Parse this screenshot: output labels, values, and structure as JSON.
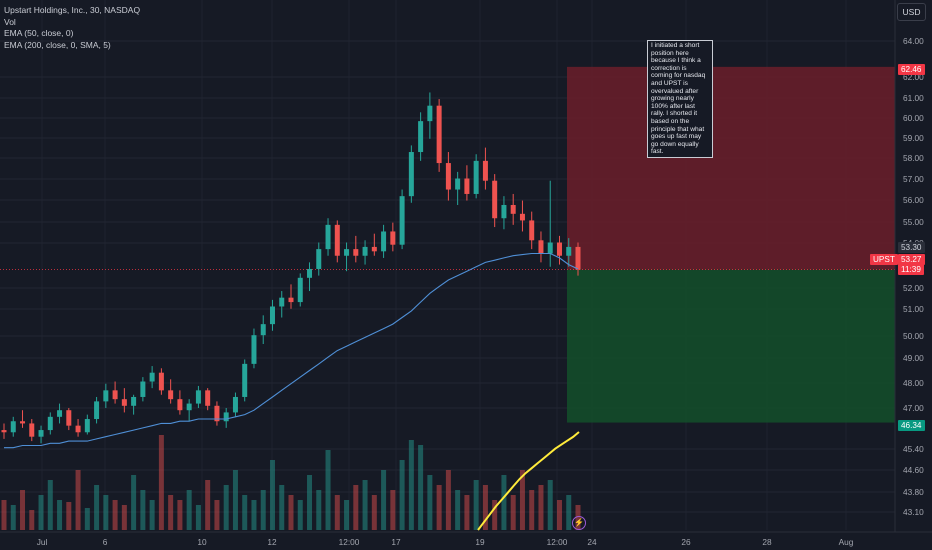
{
  "legend": {
    "title": "Upstart Holdings, Inc., 30, NASDAQ",
    "vol": "Vol",
    "ema50": "EMA (50, close, 0)",
    "ema200": "EMA (200, close, 0, SMA, 5)"
  },
  "currency": "USD",
  "note": "I initiated a short position here because I think a correction is coming for nasdaq and UPST is overvalued after growing nearly 100% after last rally. I shorted it based on the principle that what goes up fast may go down equally fast.",
  "colors": {
    "background": "#161a25",
    "up": "#26a69a",
    "down": "#ef5350",
    "ema50": "#4f8fd6",
    "ema200": "#ffeb3b",
    "stop_zone": "#6b1f2a",
    "target_zone": "#134d2a",
    "stop_badge": "#f23645",
    "target_badge": "#089981",
    "price_badge": "#f23645"
  },
  "badges": {
    "stop": "62.46",
    "ema": "53.30",
    "symbol": "UPST",
    "last": "53.27",
    "countdown": "11:39",
    "target": "46.34"
  },
  "chart_data": {
    "type": "candlestick",
    "symbol": "UPST",
    "interval": "30",
    "y_axis_ticks": [
      "64.00",
      "62.00",
      "61.00",
      "60.00",
      "59.00",
      "58.00",
      "57.00",
      "56.00",
      "55.00",
      "54.00",
      "52.00",
      "51.00",
      "50.00",
      "49.00",
      "48.00",
      "47.00",
      "45.40",
      "44.60",
      "43.80",
      "43.10"
    ],
    "x_axis_ticks": [
      "Jul",
      "6",
      "10",
      "12",
      "12:00",
      "17",
      "19",
      "12:00",
      "24",
      "26",
      "28",
      "Aug"
    ],
    "price_range": [
      46.0,
      64.5
    ],
    "position": {
      "side": "short",
      "entry": 53.27,
      "stop": 62.46,
      "target": 46.34
    },
    "last_price": 53.27,
    "ema50_last": 53.3,
    "candles": [
      [
        46.0,
        46.3,
        45.6,
        45.9
      ],
      [
        45.9,
        46.6,
        45.7,
        46.4
      ],
      [
        46.4,
        46.9,
        46.1,
        46.3
      ],
      [
        46.3,
        46.5,
        45.5,
        45.7
      ],
      [
        45.7,
        46.2,
        45.4,
        46.0
      ],
      [
        46.0,
        46.8,
        45.8,
        46.6
      ],
      [
        46.6,
        47.2,
        46.3,
        46.9
      ],
      [
        46.9,
        47.0,
        46.0,
        46.2
      ],
      [
        46.2,
        46.5,
        45.7,
        45.9
      ],
      [
        45.9,
        46.7,
        45.8,
        46.5
      ],
      [
        46.5,
        47.5,
        46.3,
        47.3
      ],
      [
        47.3,
        48.1,
        47.0,
        47.8
      ],
      [
        47.8,
        48.2,
        47.2,
        47.4
      ],
      [
        47.4,
        47.9,
        46.8,
        47.1
      ],
      [
        47.1,
        47.6,
        46.7,
        47.5
      ],
      [
        47.5,
        48.4,
        47.3,
        48.2
      ],
      [
        48.2,
        48.9,
        47.9,
        48.6
      ],
      [
        48.6,
        48.8,
        47.6,
        47.8
      ],
      [
        47.8,
        48.3,
        47.2,
        47.4
      ],
      [
        47.4,
        47.8,
        46.7,
        46.9
      ],
      [
        46.9,
        47.4,
        46.4,
        47.2
      ],
      [
        47.2,
        48.0,
        47.0,
        47.8
      ],
      [
        47.8,
        47.9,
        46.9,
        47.1
      ],
      [
        47.1,
        47.3,
        46.2,
        46.4
      ],
      [
        46.4,
        47.0,
        46.1,
        46.8
      ],
      [
        46.8,
        47.7,
        46.6,
        47.5
      ],
      [
        47.5,
        49.2,
        47.3,
        49.0
      ],
      [
        49.0,
        50.6,
        48.8,
        50.3
      ],
      [
        50.3,
        51.2,
        49.9,
        50.8
      ],
      [
        50.8,
        51.9,
        50.5,
        51.6
      ],
      [
        51.6,
        52.3,
        51.1,
        52.0
      ],
      [
        52.0,
        52.6,
        51.5,
        51.8
      ],
      [
        51.8,
        53.1,
        51.6,
        52.9
      ],
      [
        52.9,
        53.6,
        52.3,
        53.3
      ],
      [
        53.3,
        54.5,
        53.0,
        54.2
      ],
      [
        54.2,
        55.6,
        53.9,
        55.3
      ],
      [
        55.3,
        55.5,
        53.6,
        53.9
      ],
      [
        53.9,
        54.5,
        53.2,
        54.2
      ],
      [
        54.2,
        54.8,
        53.6,
        53.9
      ],
      [
        53.9,
        54.6,
        53.5,
        54.3
      ],
      [
        54.3,
        54.9,
        53.9,
        54.1
      ],
      [
        54.1,
        55.3,
        53.8,
        55.0
      ],
      [
        55.0,
        55.4,
        54.1,
        54.4
      ],
      [
        54.4,
        56.9,
        54.2,
        56.6
      ],
      [
        56.6,
        58.9,
        56.3,
        58.6
      ],
      [
        58.6,
        60.4,
        58.2,
        60.0
      ],
      [
        60.0,
        61.3,
        59.2,
        60.7
      ],
      [
        60.7,
        61.0,
        57.7,
        58.1
      ],
      [
        58.1,
        58.6,
        56.4,
        56.9
      ],
      [
        56.9,
        57.7,
        56.2,
        57.4
      ],
      [
        57.4,
        58.0,
        56.4,
        56.7
      ],
      [
        56.7,
        58.5,
        56.5,
        58.2
      ],
      [
        58.2,
        58.8,
        56.9,
        57.3
      ],
      [
        57.3,
        57.6,
        55.2,
        55.6
      ],
      [
        55.6,
        56.6,
        55.1,
        56.2
      ],
      [
        56.2,
        56.7,
        55.3,
        55.8
      ],
      [
        55.8,
        56.4,
        55.0,
        55.5
      ],
      [
        55.5,
        55.9,
        54.2,
        54.6
      ],
      [
        54.6,
        55.0,
        53.6,
        54.0
      ],
      [
        54.0,
        57.3,
        53.4,
        54.5
      ],
      [
        54.5,
        54.8,
        53.5,
        53.9
      ],
      [
        53.9,
        54.7,
        53.4,
        54.3
      ],
      [
        54.3,
        54.5,
        53.0,
        53.27
      ]
    ],
    "volume_relative": [
      0.3,
      0.25,
      0.4,
      0.2,
      0.35,
      0.5,
      0.3,
      0.28,
      0.6,
      0.22,
      0.45,
      0.35,
      0.3,
      0.25,
      0.55,
      0.4,
      0.3,
      0.95,
      0.35,
      0.3,
      0.4,
      0.25,
      0.5,
      0.3,
      0.45,
      0.6,
      0.35,
      0.3,
      0.4,
      0.7,
      0.45,
      0.35,
      0.3,
      0.55,
      0.4,
      0.8,
      0.35,
      0.3,
      0.45,
      0.5,
      0.35,
      0.6,
      0.4,
      0.7,
      0.9,
      0.85,
      0.55,
      0.45,
      0.6,
      0.4,
      0.35,
      0.5,
      0.45,
      0.3,
      0.55,
      0.35,
      0.6,
      0.4,
      0.45,
      0.5,
      0.3,
      0.35,
      0.25
    ],
    "ema50": [
      45.2,
      45.2,
      45.3,
      45.3,
      45.3,
      45.4,
      45.4,
      45.5,
      45.5,
      45.5,
      45.6,
      45.7,
      45.8,
      45.9,
      46.0,
      46.1,
      46.2,
      46.3,
      46.3,
      46.4,
      46.4,
      46.5,
      46.5,
      46.5,
      46.5,
      46.6,
      46.7,
      46.9,
      47.2,
      47.5,
      47.8,
      48.1,
      48.4,
      48.7,
      49.0,
      49.3,
      49.6,
      49.8,
      50.0,
      50.2,
      50.4,
      50.6,
      50.8,
      51.1,
      51.4,
      51.8,
      52.2,
      52.5,
      52.8,
      53.0,
      53.2,
      53.4,
      53.6,
      53.7,
      53.8,
      53.9,
      53.95,
      54.0,
      54.0,
      54.0,
      53.8,
      53.5,
      53.3
    ],
    "ema200_relative": [
      0.0,
      0.08,
      0.16,
      0.24,
      0.31,
      0.38,
      0.45,
      0.52,
      0.58,
      0.63,
      0.68,
      0.73,
      0.78,
      0.83,
      0.87,
      0.91,
      0.95,
      1.0
    ]
  }
}
